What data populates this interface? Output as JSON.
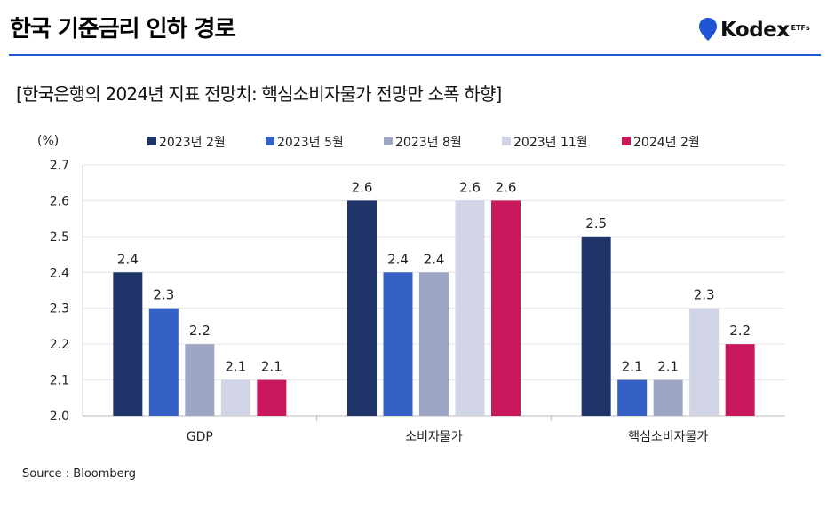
{
  "header": {
    "title": "한국 기준금리 인하 경로",
    "brand": "Kodex",
    "brand_sub": "ETFs",
    "accent_color": "#1e56d6"
  },
  "subtitle": "[한국은행의 2024년 지표 전망치: 핵심소비자물가 전망만 소폭 하향]",
  "source": "Source : Bloomberg",
  "chart_data": {
    "type": "bar",
    "ylabel": "(%)",
    "ylim": [
      2.0,
      2.7
    ],
    "yticks": [
      "2.0",
      "2.1",
      "2.2",
      "2.3",
      "2.4",
      "2.5",
      "2.6",
      "2.7"
    ],
    "grid": true,
    "legend_position": "top",
    "categories": [
      "GDP",
      "소비자물가",
      "핵심소비자물가"
    ],
    "series": [
      {
        "name": "2023년 2월",
        "color": "#1f3569",
        "values": [
          2.4,
          2.6,
          2.5
        ],
        "labels": [
          "2.4",
          "2.6",
          "2.5"
        ]
      },
      {
        "name": "2023년 5월",
        "color": "#3561c7",
        "values": [
          2.3,
          2.4,
          2.1
        ],
        "labels": [
          "2.3",
          "2.4",
          "2.1"
        ]
      },
      {
        "name": "2023년 8월",
        "color": "#9ea6c6",
        "values": [
          2.2,
          2.4,
          2.1
        ],
        "labels": [
          "2.2",
          "2.4",
          "2.1"
        ]
      },
      {
        "name": "2023년 11월",
        "color": "#d1d4e4",
        "values": [
          2.1,
          2.6,
          2.3
        ],
        "labels": [
          "2.1",
          "2.6",
          "2.3"
        ]
      },
      {
        "name": "2024년 2월",
        "color": "#c8195c",
        "values": [
          2.1,
          2.6,
          2.2
        ],
        "labels": [
          "2.1",
          "2.6",
          "2.2"
        ]
      }
    ]
  }
}
